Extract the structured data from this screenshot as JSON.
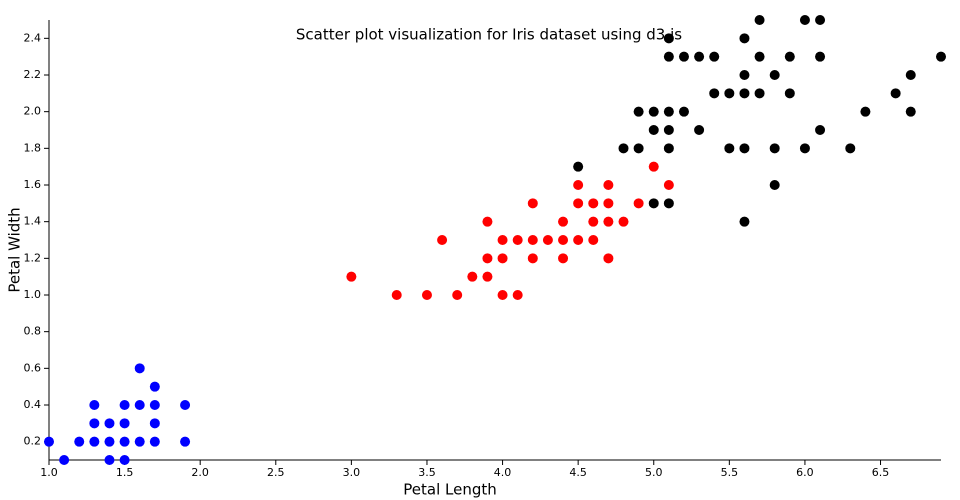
{
  "chart_data": {
    "type": "scatter",
    "title": "Scatter plot visualization for Iris dataset using d3.js",
    "x_label": "Petal Length",
    "y_label": "Petal Width",
    "xlim": [
      1.0,
      6.9
    ],
    "ylim": [
      0.1,
      2.5
    ],
    "xticks": [
      {
        "value": 1.0,
        "label": "1.0"
      },
      1.5,
      {
        "value": 2.0,
        "label": "2.0"
      },
      2.5,
      {
        "value": 3.0,
        "label": "3.0"
      },
      3.5,
      {
        "value": 4.0,
        "label": "4.0"
      },
      4.5,
      {
        "value": 5.0,
        "label": "5.0"
      },
      5.5,
      {
        "value": 6.0,
        "label": "6.0"
      },
      6.5
    ],
    "yticks": [
      0.2,
      0.4,
      0.6,
      0.8,
      {
        "value": 1.0,
        "label": "1.0"
      },
      1.2,
      1.4,
      1.6,
      1.8,
      {
        "value": 2.0,
        "label": "2.0"
      },
      2.2,
      2.4
    ],
    "series": [
      {
        "color": "#0000ff",
        "x": [
          1.0,
          1.1,
          1.2,
          1.3,
          1.3,
          1.3,
          1.4,
          1.4,
          1.4,
          1.5,
          1.5,
          1.5,
          1.5,
          1.6,
          1.6,
          1.6,
          1.7,
          1.7,
          1.7,
          1.7,
          1.9,
          1.9
        ],
        "values": [
          0.2,
          0.1,
          0.2,
          0.2,
          0.3,
          0.4,
          0.1,
          0.2,
          0.3,
          0.1,
          0.2,
          0.3,
          0.4,
          0.2,
          0.4,
          0.6,
          0.2,
          0.3,
          0.4,
          0.5,
          0.2,
          0.4
        ]
      },
      {
        "color": "#ff0000",
        "x": [
          3.0,
          3.3,
          3.5,
          3.7,
          3.6,
          3.8,
          3.9,
          3.9,
          3.9,
          4.0,
          4.0,
          4.0,
          4.1,
          4.1,
          4.2,
          4.2,
          4.2,
          4.3,
          4.4,
          4.4,
          4.4,
          4.5,
          4.5,
          4.5,
          4.6,
          4.6,
          4.6,
          4.7,
          4.7,
          4.7,
          4.7,
          4.8,
          4.9,
          5.0,
          5.1
        ],
        "values": [
          1.1,
          1.0,
          1.0,
          1.0,
          1.3,
          1.1,
          1.1,
          1.2,
          1.4,
          1.0,
          1.2,
          1.3,
          1.0,
          1.3,
          1.2,
          1.3,
          1.5,
          1.3,
          1.2,
          1.3,
          1.4,
          1.3,
          1.5,
          1.6,
          1.3,
          1.4,
          1.5,
          1.2,
          1.4,
          1.5,
          1.6,
          1.4,
          1.5,
          1.7,
          1.6
        ]
      },
      {
        "color": "#000000",
        "x": [
          4.5,
          4.8,
          4.9,
          4.9,
          5.0,
          5.0,
          5.0,
          5.1,
          5.1,
          5.1,
          5.1,
          5.1,
          5.1,
          5.2,
          5.2,
          5.3,
          5.3,
          5.4,
          5.4,
          5.5,
          5.5,
          5.6,
          5.6,
          5.6,
          5.6,
          5.6,
          5.7,
          5.7,
          5.7,
          5.8,
          5.8,
          5.8,
          5.9,
          5.9,
          6.0,
          6.0,
          6.1,
          6.1,
          6.1,
          6.3,
          6.4,
          6.6,
          6.7,
          6.7,
          6.9
        ],
        "values": [
          1.7,
          1.8,
          1.8,
          2.0,
          1.5,
          1.9,
          2.0,
          1.5,
          1.8,
          1.9,
          2.0,
          2.3,
          2.4,
          2.0,
          2.3,
          1.9,
          2.3,
          2.1,
          2.3,
          1.8,
          2.1,
          1.4,
          1.8,
          2.1,
          2.2,
          2.4,
          2.1,
          2.3,
          2.5,
          1.6,
          1.8,
          2.2,
          2.1,
          2.3,
          1.8,
          2.5,
          1.9,
          2.3,
          2.5,
          1.8,
          2.0,
          2.1,
          2.0,
          2.2,
          2.3
        ]
      }
    ]
  }
}
